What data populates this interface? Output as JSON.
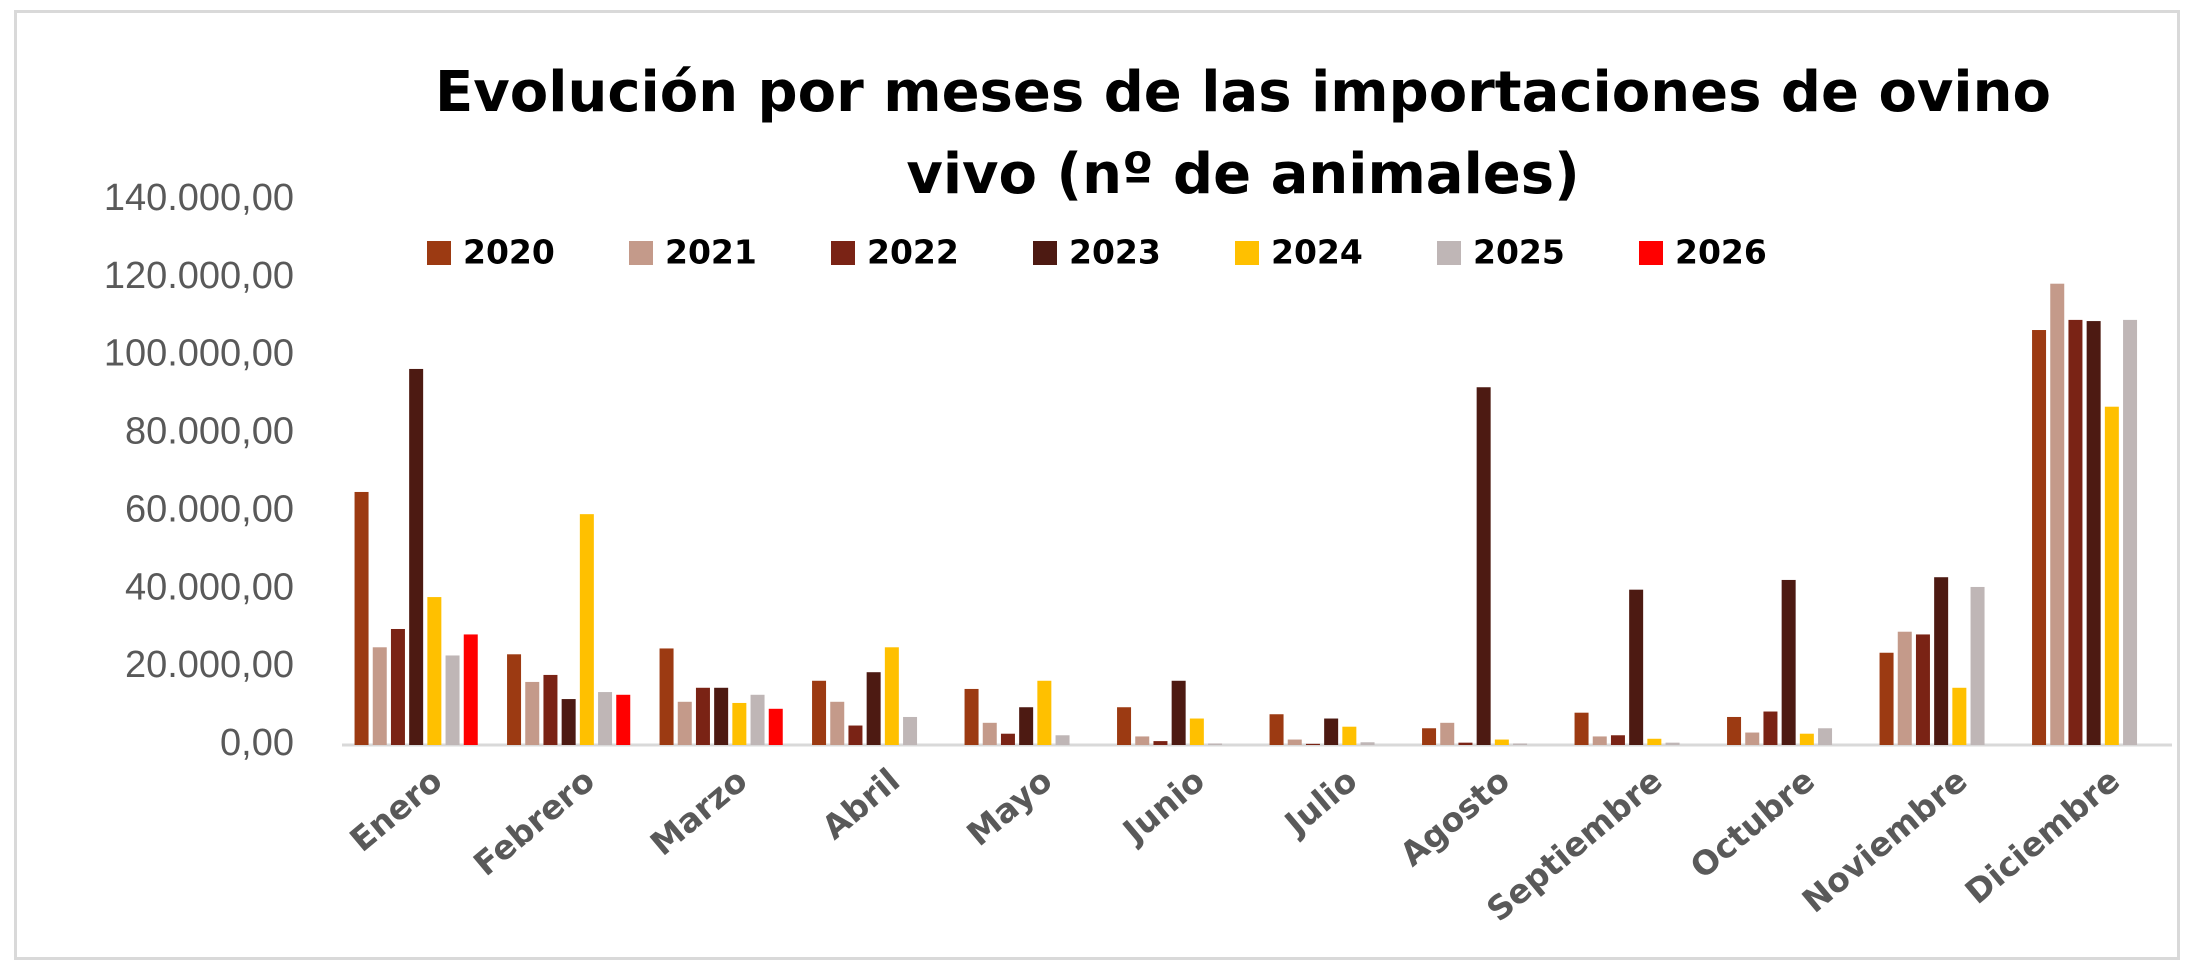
{
  "chart_data": {
    "type": "bar",
    "title": "Evolución por meses de las importaciones de ovino vivo (nº de animales)",
    "categories": [
      "Enero",
      "Febrero",
      "Marzo",
      "Abril",
      "Mayo",
      "Junio",
      "Julio",
      "Agosto",
      "Septiembre",
      "Octubre",
      "Noviembre",
      "Diciembre"
    ],
    "series": [
      {
        "name": "2020",
        "color": "#9c3a12",
        "values": [
          65000,
          23300,
          24800,
          16500,
          14400,
          9700,
          7900,
          4300,
          8300,
          7200,
          23700,
          106600
        ]
      },
      {
        "name": "2021",
        "color": "#c49a8a",
        "values": [
          25100,
          16200,
          11100,
          11100,
          5700,
          2200,
          1400,
          5700,
          2200,
          3200,
          29100,
          118500
        ]
      },
      {
        "name": "2022",
        "color": "#7a2315",
        "values": [
          29800,
          18000,
          14700,
          5000,
          2900,
          1000,
          300,
          600,
          2500,
          8600,
          28400,
          109200
        ]
      },
      {
        "name": "2023",
        "color": "#4d1a12",
        "values": [
          96600,
          11800,
          14700,
          18700,
          9700,
          16500,
          6800,
          91900,
          39900,
          42400,
          43100,
          108900
        ]
      },
      {
        "name": "2024",
        "color": "#ffc000",
        "values": [
          38000,
          59300,
          10800,
          25100,
          16500,
          6800,
          4700,
          1400,
          1600,
          2900,
          14700,
          86900
        ]
      },
      {
        "name": "2025",
        "color": "#bfb6b6",
        "values": [
          23000,
          13600,
          12900,
          7200,
          2500,
          400,
          700,
          400,
          600,
          4300,
          40600,
          109200
        ]
      },
      {
        "name": "2026",
        "color": "#ff0000",
        "values": [
          28400,
          12900,
          9300,
          null,
          null,
          null,
          null,
          null,
          null,
          null,
          null,
          null
        ]
      }
    ],
    "ylim": [
      0,
      140000
    ],
    "yticks": [
      {
        "value": 0,
        "label": "0,00"
      },
      {
        "value": 20000,
        "label": "20.000,00"
      },
      {
        "value": 40000,
        "label": "40.000,00"
      },
      {
        "value": 60000,
        "label": "60.000,00"
      },
      {
        "value": 80000,
        "label": "80.000,00"
      },
      {
        "value": 100000,
        "label": "100.000,00"
      },
      {
        "value": 120000,
        "label": "120.000,00"
      },
      {
        "value": 140000,
        "label": "140.000,00"
      }
    ],
    "grid": false,
    "legend": "top"
  }
}
